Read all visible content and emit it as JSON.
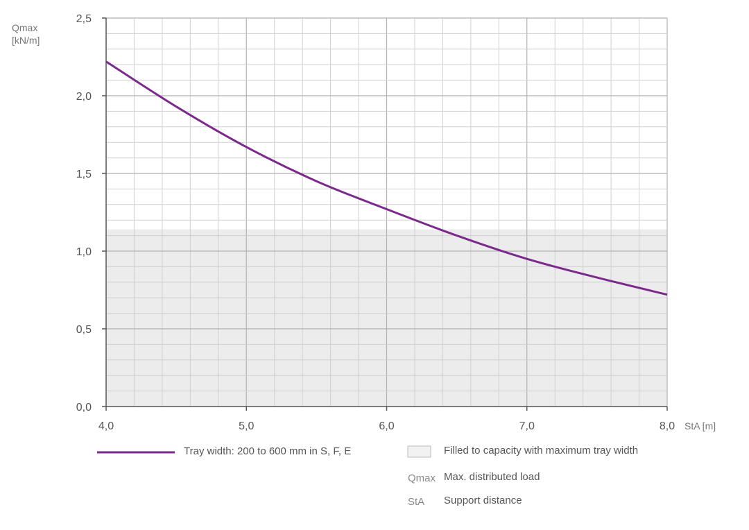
{
  "chart_data": {
    "type": "line",
    "x": [
      4.0,
      4.5,
      5.0,
      5.5,
      6.0,
      6.5,
      7.0,
      7.5,
      8.0
    ],
    "series": [
      {
        "name": "Tray width: 200 to 600 mm in S, F, E",
        "values": [
          2.22,
          1.93,
          1.67,
          1.45,
          1.27,
          1.1,
          0.95,
          0.83,
          0.72
        ],
        "color": "#7b2a8c"
      }
    ],
    "xlim": [
      4.0,
      8.0
    ],
    "ylim": [
      0.0,
      2.5
    ],
    "x_ticks": [
      "4,0",
      "5,0",
      "6,0",
      "7,0",
      "8,0"
    ],
    "y_ticks": [
      "0,0",
      "0,5",
      "1,0",
      "1,5",
      "2,0",
      "2,5"
    ],
    "ylabel_line1": "Qmax",
    "ylabel_line2": "[kN/m]",
    "xlabel": "StA [m]",
    "shaded_region": {
      "y_top": 1.14,
      "color": "#ececec"
    },
    "grid": true,
    "colors": {
      "grid_minor": "#d0d0d0",
      "grid_major": "#b0b0b0",
      "axis": "#555555"
    }
  },
  "legend": {
    "line_label": "Tray width: 200 to 600 mm in S, F, E",
    "fill_label": "Filled to capacity with maximum tray width",
    "abbr1": "Qmax",
    "abbr1_desc": "Max. distributed load",
    "abbr2": "StA",
    "abbr2_desc": "Support distance"
  }
}
